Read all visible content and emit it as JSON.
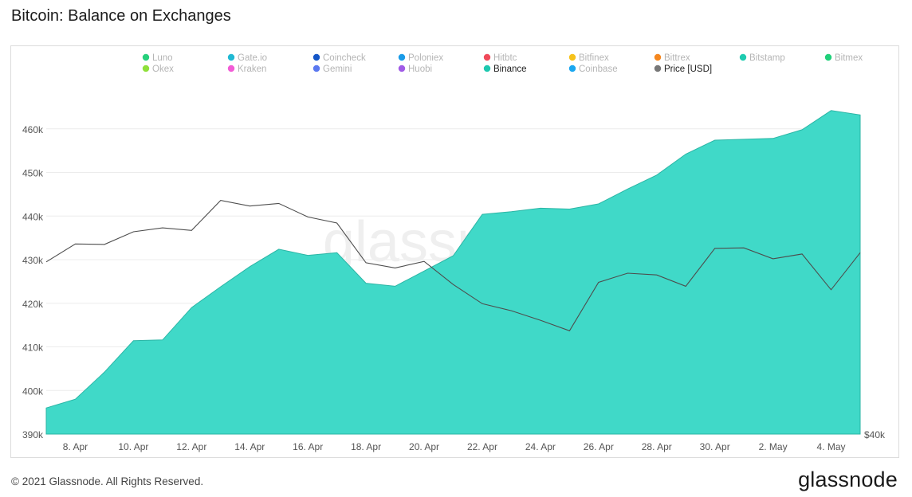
{
  "header": {
    "title": "Bitcoin: Balance on Exchanges"
  },
  "footer": {
    "copyright": "© 2021 Glassnode. All Rights Reserved.",
    "logo": "glassnode"
  },
  "watermark": "glassnode",
  "chart_data": {
    "type": "area",
    "title": "Bitcoin: Balance on Exchanges",
    "legend": [
      {
        "label": "Luno",
        "color": "#27d07c",
        "active": false
      },
      {
        "label": "Gate.io",
        "color": "#20b9d3",
        "active": false
      },
      {
        "label": "Coincheck",
        "color": "#1456c7",
        "active": false
      },
      {
        "label": "Poloniex",
        "color": "#1a9be8",
        "active": false
      },
      {
        "label": "Hitbtc",
        "color": "#f04a5a",
        "active": false
      },
      {
        "label": "Bitfinex",
        "color": "#f6c21b",
        "active": false
      },
      {
        "label": "Bittrex",
        "color": "#f5871f",
        "active": false
      },
      {
        "label": "Bitstamp",
        "color": "#1ecbb0",
        "active": false
      },
      {
        "label": "Bitmex",
        "color": "#20d07a",
        "active": false
      },
      {
        "label": "Okex",
        "color": "#8fe03a",
        "active": false
      },
      {
        "label": "Kraken",
        "color": "#f25cd6",
        "active": false
      },
      {
        "label": "Gemini",
        "color": "#5a78f0",
        "active": false
      },
      {
        "label": "Huobi",
        "color": "#a05be6",
        "active": false
      },
      {
        "label": "Binance",
        "color": "#1ec8b0",
        "active": true
      },
      {
        "label": "Coinbase",
        "color": "#1aa7f0",
        "active": false
      },
      {
        "label": "Price [USD]",
        "color": "#777777",
        "active": true
      }
    ],
    "x_ticks": [
      "8. Apr",
      "10. Apr",
      "12. Apr",
      "14. Apr",
      "16. Apr",
      "18. Apr",
      "20. Apr",
      "22. Apr",
      "24. Apr",
      "26. Apr",
      "28. Apr",
      "30. Apr",
      "2. May",
      "4. May"
    ],
    "y_left_ticks": [
      "390k",
      "400k",
      "410k",
      "420k",
      "430k",
      "440k",
      "450k",
      "460k"
    ],
    "y_left_range": [
      390000,
      468000
    ],
    "y_right_tick": "$40k",
    "x_dates": [
      "7. Apr",
      "8. Apr",
      "9. Apr",
      "10. Apr",
      "11. Apr",
      "12. Apr",
      "13. Apr",
      "14. Apr",
      "15. Apr",
      "16. Apr",
      "17. Apr",
      "18. Apr",
      "19. Apr",
      "20. Apr",
      "21. Apr",
      "22. Apr",
      "23. Apr",
      "24. Apr",
      "25. Apr",
      "26. Apr",
      "27. Apr",
      "28. Apr",
      "29. Apr",
      "30. Apr",
      "1. May",
      "2. May",
      "3. May",
      "4. May",
      "5. May"
    ],
    "series": [
      {
        "name": "Binance",
        "color": "#40d9c8",
        "values": [
          396000,
          398000,
          404200,
          411400,
          411600,
          419000,
          423800,
          428400,
          432400,
          431000,
          431600,
          424600,
          423900,
          427400,
          430900,
          440400,
          441000,
          441800,
          441600,
          442800,
          446200,
          449400,
          454200,
          457400,
          457600,
          457800,
          459800,
          464200,
          463200
        ]
      },
      {
        "name": "Price [USD]",
        "color": "#4d4d4d",
        "values": [
          429500,
          433600,
          433500,
          436400,
          437300,
          436700,
          443600,
          442300,
          442900,
          439800,
          438400,
          429300,
          428100,
          429600,
          424300,
          419900,
          418300,
          416100,
          413700,
          424800,
          426900,
          426500,
          423900,
          432600,
          432700,
          430200,
          431300,
          423100,
          431600
        ]
      }
    ]
  }
}
